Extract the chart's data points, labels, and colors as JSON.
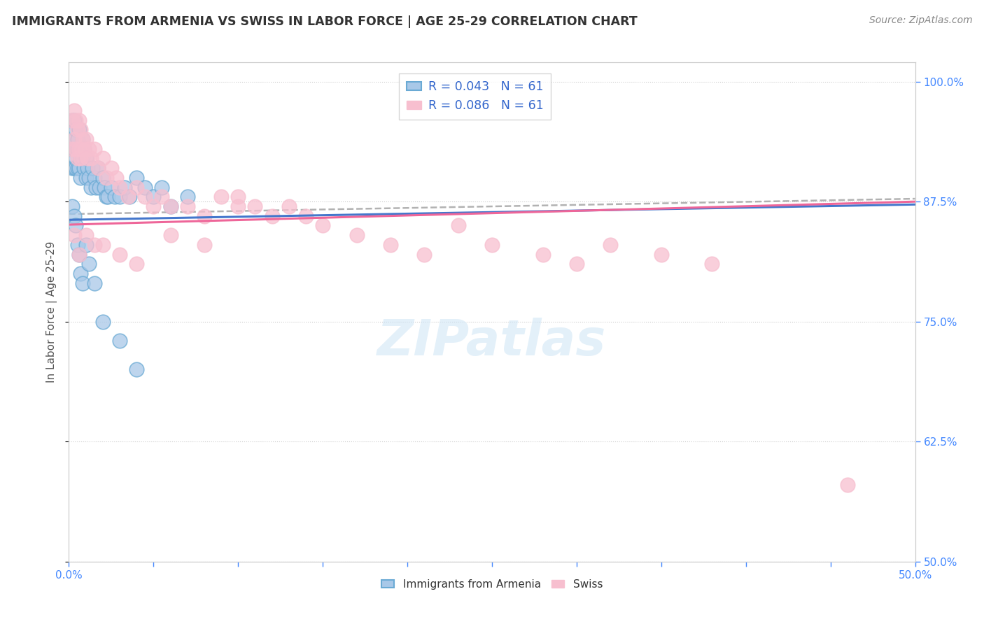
{
  "title": "IMMIGRANTS FROM ARMENIA VS SWISS IN LABOR FORCE | AGE 25-29 CORRELATION CHART",
  "source": "Source: ZipAtlas.com",
  "ylabel": "In Labor Force | Age 25-29",
  "xlim": [
    0.0,
    0.5
  ],
  "ylim": [
    0.5,
    1.02
  ],
  "xticks": [
    0.0,
    0.05,
    0.1,
    0.15,
    0.2,
    0.25,
    0.3,
    0.35,
    0.4,
    0.45,
    0.5
  ],
  "yticks": [
    0.5,
    0.625,
    0.75,
    0.875,
    1.0
  ],
  "yticklabels": [
    "50.0%",
    "62.5%",
    "75.0%",
    "87.5%",
    "100.0%"
  ],
  "r_armenia": 0.043,
  "n_armenia": 61,
  "r_swiss": 0.086,
  "n_swiss": 61,
  "color_armenia_fill": "#a8c8e8",
  "color_armenia_edge": "#6aaad4",
  "color_swiss_fill": "#f7bfcf",
  "color_swiss_edge": "#f090b0",
  "color_armenia_line": "#4477cc",
  "color_swiss_line": "#ee6699",
  "color_dashed": "#aaaaaa",
  "color_tick": "#4488ff",
  "background_color": "#ffffff",
  "watermark": "ZIPatlas",
  "armenia_x": [
    0.002,
    0.002,
    0.002,
    0.003,
    0.003,
    0.003,
    0.004,
    0.004,
    0.004,
    0.004,
    0.005,
    0.005,
    0.005,
    0.006,
    0.006,
    0.006,
    0.007,
    0.007,
    0.007,
    0.008,
    0.008,
    0.009,
    0.009,
    0.01,
    0.01,
    0.011,
    0.012,
    0.013,
    0.014,
    0.015,
    0.016,
    0.017,
    0.018,
    0.02,
    0.021,
    0.022,
    0.023,
    0.025,
    0.027,
    0.03,
    0.033,
    0.036,
    0.04,
    0.045,
    0.05,
    0.055,
    0.06,
    0.07,
    0.002,
    0.003,
    0.004,
    0.005,
    0.006,
    0.007,
    0.008,
    0.01,
    0.012,
    0.015,
    0.02,
    0.03,
    0.04
  ],
  "armenia_y": [
    0.96,
    0.93,
    0.91,
    0.96,
    0.94,
    0.91,
    0.95,
    0.93,
    0.92,
    0.91,
    0.94,
    0.93,
    0.91,
    0.95,
    0.93,
    0.91,
    0.93,
    0.92,
    0.9,
    0.94,
    0.92,
    0.93,
    0.91,
    0.92,
    0.9,
    0.91,
    0.9,
    0.89,
    0.91,
    0.9,
    0.89,
    0.91,
    0.89,
    0.9,
    0.89,
    0.88,
    0.88,
    0.89,
    0.88,
    0.88,
    0.89,
    0.88,
    0.9,
    0.89,
    0.88,
    0.89,
    0.87,
    0.88,
    0.87,
    0.86,
    0.85,
    0.83,
    0.82,
    0.8,
    0.79,
    0.83,
    0.81,
    0.79,
    0.75,
    0.73,
    0.7
  ],
  "swiss_x": [
    0.002,
    0.002,
    0.003,
    0.003,
    0.004,
    0.004,
    0.005,
    0.005,
    0.006,
    0.006,
    0.007,
    0.007,
    0.008,
    0.009,
    0.01,
    0.011,
    0.012,
    0.013,
    0.015,
    0.017,
    0.02,
    0.022,
    0.025,
    0.028,
    0.03,
    0.035,
    0.04,
    0.045,
    0.05,
    0.055,
    0.06,
    0.07,
    0.08,
    0.09,
    0.1,
    0.11,
    0.12,
    0.13,
    0.14,
    0.15,
    0.17,
    0.19,
    0.21,
    0.23,
    0.25,
    0.28,
    0.3,
    0.32,
    0.35,
    0.38,
    0.003,
    0.006,
    0.01,
    0.015,
    0.02,
    0.03,
    0.04,
    0.06,
    0.08,
    0.1,
    0.46
  ],
  "swiss_y": [
    0.96,
    0.93,
    0.97,
    0.94,
    0.96,
    0.93,
    0.95,
    0.92,
    0.96,
    0.93,
    0.95,
    0.92,
    0.94,
    0.93,
    0.94,
    0.92,
    0.93,
    0.92,
    0.93,
    0.91,
    0.92,
    0.9,
    0.91,
    0.9,
    0.89,
    0.88,
    0.89,
    0.88,
    0.87,
    0.88,
    0.87,
    0.87,
    0.86,
    0.88,
    0.88,
    0.87,
    0.86,
    0.87,
    0.86,
    0.85,
    0.84,
    0.83,
    0.82,
    0.85,
    0.83,
    0.82,
    0.81,
    0.83,
    0.82,
    0.81,
    0.84,
    0.82,
    0.84,
    0.83,
    0.83,
    0.82,
    0.81,
    0.84,
    0.83,
    0.87,
    0.58
  ]
}
